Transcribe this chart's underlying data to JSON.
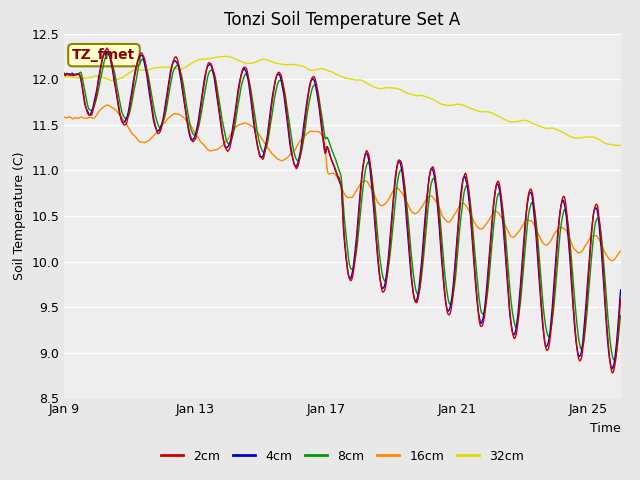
{
  "title": "Tonzi Soil Temperature Set A",
  "xlabel": "Time",
  "ylabel": "Soil Temperature (C)",
  "ylim": [
    8.5,
    12.5
  ],
  "xtick_labels": [
    "Jan 9",
    "Jan 13",
    "Jan 17",
    "Jan 21",
    "Jan 25"
  ],
  "xtick_pos": [
    0,
    4,
    8,
    12,
    16
  ],
  "yticks": [
    8.5,
    9.0,
    9.5,
    10.0,
    10.5,
    11.0,
    11.5,
    12.0,
    12.5
  ],
  "legend_labels": [
    "2cm",
    "4cm",
    "8cm",
    "16cm",
    "32cm"
  ],
  "legend_colors": [
    "#cc0000",
    "#0000cc",
    "#009900",
    "#ff8800",
    "#dddd00"
  ],
  "annotation_text": "TZ_fmet",
  "annotation_bg": "#ffffcc",
  "annotation_border": "#888800",
  "annotation_text_color": "#880000",
  "fig_bg_color": "#e8e8e8",
  "plot_bg_color": "#eeeeee",
  "title_fontsize": 12,
  "label_fontsize": 9,
  "tick_fontsize": 9,
  "legend_fontsize": 9,
  "n_points": 1700
}
